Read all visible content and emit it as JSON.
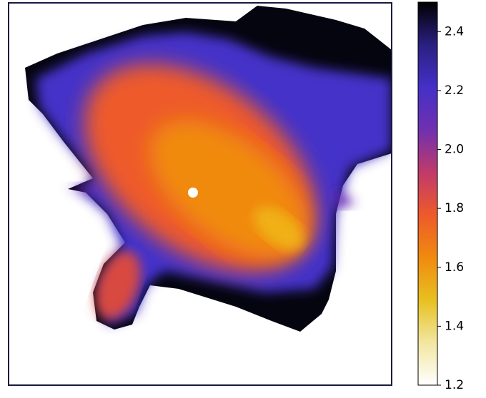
{
  "chart_data": {
    "type": "image",
    "colormap": [
      "#ffffff",
      "#f2e6a0",
      "#e8c020",
      "#f08a10",
      "#ee5a2a",
      "#c03a6a",
      "#7030b0",
      "#4430c8",
      "#2a2080",
      "#000000"
    ],
    "clim": [
      1.2,
      2.5
    ],
    "cticks": [
      1.2,
      1.4,
      1.6,
      1.8,
      {
        "value": 2,
        "label": "2.0"
      },
      2.2,
      2.4
    ]
  }
}
